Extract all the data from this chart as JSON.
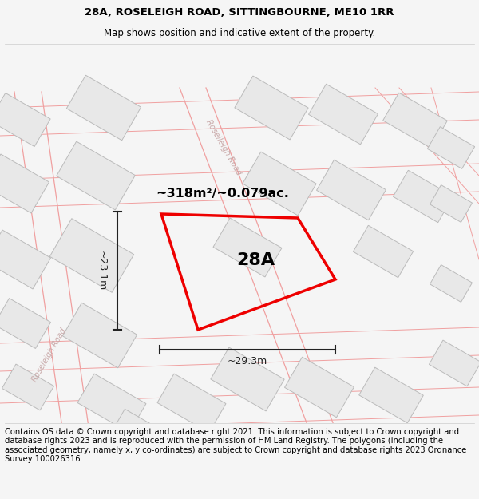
{
  "title_line1": "28A, ROSELEIGH ROAD, SITTINGBOURNE, ME10 1RR",
  "title_line2": "Map shows position and indicative extent of the property.",
  "footer_text": "Contains OS data © Crown copyright and database right 2021. This information is subject to Crown copyright and database rights 2023 and is reproduced with the permission of HM Land Registry. The polygons (including the associated geometry, namely x, y co-ordinates) are subject to Crown copyright and database rights 2023 Ordnance Survey 100026316.",
  "area_label": "~318m²/~0.079ac.",
  "plot_label": "28A",
  "dim_width": "~29.3m",
  "dim_height": "~23.1m",
  "bg_color": "#f5f5f5",
  "map_bg": "#ffffff",
  "title_fontsize": 9.5,
  "subtitle_fontsize": 8.5,
  "footer_fontsize": 7.2,
  "road_text_color": "#c8a8a8",
  "road_line_color": "#f0a0a0",
  "building_color": "#e8e8e8",
  "building_outline": "#bbbbbb",
  "red_plot_color": "#ee0000",
  "dim_color": "#222222",
  "map_outline_color": "#cccccc"
}
